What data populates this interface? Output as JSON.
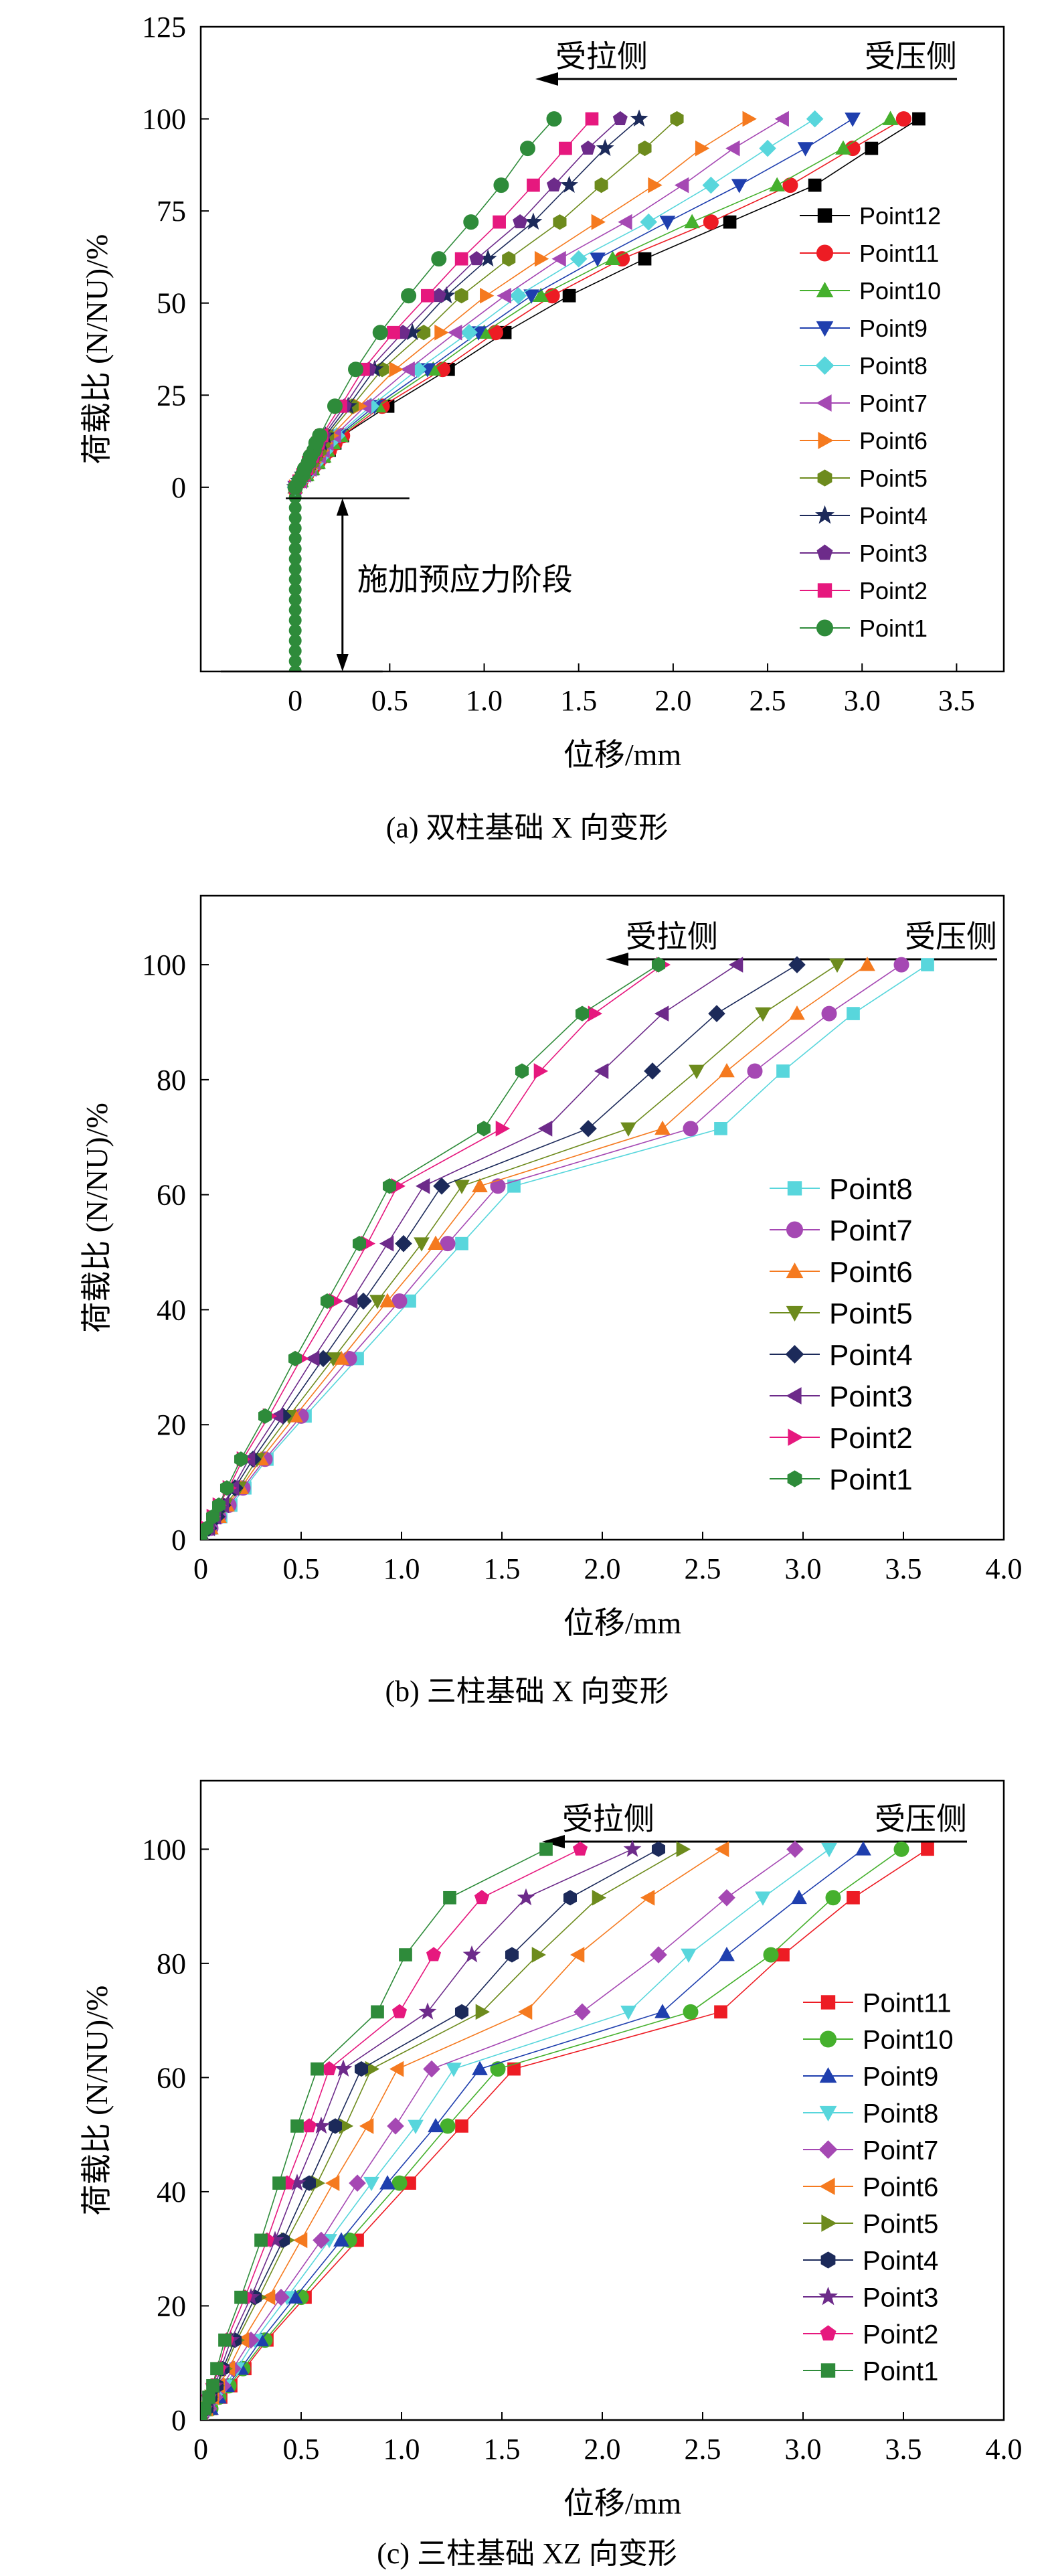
{
  "colors": {
    "Point12": "#000000",
    "Point11": "#ed1c24",
    "Point10": "#45b02d",
    "Point9": "#1f3fae",
    "Point8": "#58d6dc",
    "Point7": "#a548b3",
    "Point6": "#f57a1f",
    "Point5": "#6d8b1d",
    "Point4": "#1c2a5a",
    "Point3": "#6d2b8a",
    "Point2": "#e6187e",
    "Point1": "#2e8b3a"
  },
  "chart_data": [
    {
      "type": "line",
      "caption": "(a) 双柱基础 X 向变形",
      "xlabel": "位移/mm",
      "ylabel": "荷载比 (N/NU)/%",
      "xlim": [
        -0.5,
        3.75
      ],
      "ylim": [
        -50,
        125
      ],
      "xticks": [
        "0",
        "0.5",
        "1.0",
        "1.5",
        "2.0",
        "2.5",
        "3.0",
        "3.5"
      ],
      "yticks": [
        "0",
        "25",
        "50",
        "75",
        "100",
        "125"
      ],
      "arrow": {
        "left": "受拉侧",
        "right": "受压侧"
      },
      "annotation": "施加预应力阶段",
      "prestress": {
        "x": 0,
        "y_start": -50,
        "y_end": -3
      },
      "markers": {
        "Point12": "square",
        "Point11": "circle",
        "Point10": "triangle-up",
        "Point9": "triangle-down",
        "Point8": "diamond",
        "Point7": "triangle-left",
        "Point6": "triangle-right",
        "Point5": "hexagon",
        "Point4": "star",
        "Point3": "pentagon",
        "Point2": "square",
        "Point1": "circle"
      },
      "y_levels": [
        0,
        1.7,
        3.4,
        5,
        6.7,
        8.4,
        10,
        12,
        14,
        22,
        32,
        42,
        52,
        62,
        72,
        82,
        92,
        100
      ],
      "series": [
        {
          "name": "Point12",
          "x": [
            0,
            0.03,
            0.06,
            0.09,
            0.12,
            0.15,
            0.18,
            0.21,
            0.25,
            0.49,
            0.81,
            1.11,
            1.45,
            1.85,
            2.3,
            2.75,
            3.05,
            3.3
          ]
        },
        {
          "name": "Point11",
          "x": [
            0,
            0.03,
            0.06,
            0.09,
            0.12,
            0.15,
            0.18,
            0.21,
            0.25,
            0.46,
            0.78,
            1.06,
            1.36,
            1.73,
            2.2,
            2.62,
            2.95,
            3.22
          ]
        },
        {
          "name": "Point10",
          "x": [
            0,
            0.03,
            0.06,
            0.09,
            0.12,
            0.15,
            0.17,
            0.2,
            0.24,
            0.44,
            0.73,
            1.0,
            1.3,
            1.68,
            2.1,
            2.55,
            2.9,
            3.15
          ]
        },
        {
          "name": "Point9",
          "x": [
            0,
            0.03,
            0.06,
            0.09,
            0.11,
            0.14,
            0.17,
            0.19,
            0.23,
            0.42,
            0.7,
            0.97,
            1.25,
            1.6,
            1.97,
            2.35,
            2.7,
            2.95
          ]
        },
        {
          "name": "Point8",
          "x": [
            0,
            0.03,
            0.06,
            0.08,
            0.11,
            0.14,
            0.16,
            0.18,
            0.22,
            0.4,
            0.65,
            0.92,
            1.18,
            1.5,
            1.87,
            2.2,
            2.5,
            2.75
          ]
        },
        {
          "name": "Point7",
          "x": [
            0,
            0.03,
            0.05,
            0.08,
            0.1,
            0.13,
            0.15,
            0.17,
            0.21,
            0.37,
            0.6,
            0.85,
            1.11,
            1.4,
            1.75,
            2.05,
            2.32,
            2.58
          ]
        },
        {
          "name": "Point6",
          "x": [
            0,
            0.03,
            0.05,
            0.08,
            0.1,
            0.12,
            0.14,
            0.16,
            0.19,
            0.34,
            0.53,
            0.77,
            1.01,
            1.3,
            1.6,
            1.9,
            2.15,
            2.4
          ]
        },
        {
          "name": "Point5",
          "x": [
            0,
            0.02,
            0.05,
            0.07,
            0.09,
            0.11,
            0.13,
            0.15,
            0.17,
            0.3,
            0.46,
            0.68,
            0.88,
            1.13,
            1.4,
            1.62,
            1.85,
            2.02
          ]
        },
        {
          "name": "Point4",
          "x": [
            0,
            0.02,
            0.04,
            0.06,
            0.08,
            0.1,
            0.12,
            0.14,
            0.16,
            0.28,
            0.42,
            0.62,
            0.8,
            1.02,
            1.26,
            1.45,
            1.64,
            1.82
          ]
        },
        {
          "name": "Point3",
          "x": [
            0,
            0.02,
            0.04,
            0.06,
            0.08,
            0.1,
            0.11,
            0.13,
            0.15,
            0.26,
            0.39,
            0.57,
            0.76,
            0.96,
            1.19,
            1.37,
            1.55,
            1.72
          ]
        },
        {
          "name": "Point2",
          "x": [
            0,
            0.02,
            0.04,
            0.06,
            0.07,
            0.09,
            0.11,
            0.12,
            0.14,
            0.24,
            0.36,
            0.52,
            0.7,
            0.88,
            1.08,
            1.26,
            1.43,
            1.57
          ]
        },
        {
          "name": "Point1",
          "x": [
            0,
            0.02,
            0.04,
            0.05,
            0.07,
            0.08,
            0.1,
            0.11,
            0.13,
            0.21,
            0.32,
            0.45,
            0.6,
            0.76,
            0.93,
            1.09,
            1.23,
            1.37
          ]
        }
      ]
    },
    {
      "type": "line",
      "caption": "(b) 三柱基础 X 向变形",
      "xlabel": "位移/mm",
      "ylabel": "荷载比 (N/NU)/%",
      "xlim": [
        0,
        4.0
      ],
      "ylim": [
        0,
        112
      ],
      "xticks": [
        "0",
        "0.5",
        "1.0",
        "1.5",
        "2.0",
        "2.5",
        "3.0",
        "3.5",
        "4.0"
      ],
      "yticks": [
        "0",
        "20",
        "40",
        "60",
        "80",
        "100"
      ],
      "arrow": {
        "left": "受拉侧",
        "right": "受压侧"
      },
      "markers": {
        "Point8": "square",
        "Point7": "circle",
        "Point6": "triangle-up",
        "Point5": "triangle-down",
        "Point4": "diamond",
        "Point3": "triangle-left",
        "Point2": "triangle-right",
        "Point1": "hexagon"
      },
      "y_levels": [
        0,
        2,
        4,
        6,
        9,
        14,
        21.5,
        31.5,
        41.5,
        51.5,
        61.5,
        71.5,
        81.5,
        91.5,
        100
      ],
      "series": [
        {
          "name": "Point8",
          "x": [
            0,
            0.05,
            0.1,
            0.15,
            0.22,
            0.33,
            0.52,
            0.78,
            1.04,
            1.3,
            1.56,
            2.59,
            2.9,
            3.25,
            3.62
          ]
        },
        {
          "name": "Point7",
          "x": [
            0,
            0.05,
            0.09,
            0.14,
            0.21,
            0.32,
            0.5,
            0.74,
            0.99,
            1.23,
            1.48,
            2.44,
            2.76,
            3.13,
            3.49
          ]
        },
        {
          "name": "Point6",
          "x": [
            0,
            0.05,
            0.09,
            0.13,
            0.2,
            0.3,
            0.47,
            0.7,
            0.93,
            1.17,
            1.39,
            2.3,
            2.62,
            2.97,
            3.32
          ]
        },
        {
          "name": "Point5",
          "x": [
            0,
            0.04,
            0.08,
            0.12,
            0.19,
            0.28,
            0.44,
            0.66,
            0.88,
            1.1,
            1.3,
            2.13,
            2.47,
            2.8,
            3.17
          ]
        },
        {
          "name": "Point4",
          "x": [
            0,
            0.04,
            0.08,
            0.11,
            0.17,
            0.26,
            0.41,
            0.61,
            0.81,
            1.01,
            1.2,
            1.93,
            2.25,
            2.57,
            2.97
          ]
        },
        {
          "name": "Point3",
          "x": [
            0,
            0.04,
            0.07,
            0.11,
            0.16,
            0.24,
            0.38,
            0.56,
            0.75,
            0.93,
            1.11,
            1.72,
            2.0,
            2.3,
            2.67
          ]
        },
        {
          "name": "Point2",
          "x": [
            0,
            0.03,
            0.06,
            0.09,
            0.14,
            0.21,
            0.34,
            0.5,
            0.67,
            0.83,
            0.98,
            1.5,
            1.69,
            1.96,
            2.3
          ]
        },
        {
          "name": "Point1",
          "x": [
            0,
            0.03,
            0.06,
            0.09,
            0.13,
            0.2,
            0.32,
            0.47,
            0.63,
            0.79,
            0.94,
            1.41,
            1.6,
            1.9,
            2.28
          ]
        }
      ]
    },
    {
      "type": "line",
      "caption": "(c) 三柱基础 XZ 向变形",
      "xlabel": "位移/mm",
      "ylabel": "荷载比 (N/NU)/%",
      "xlim": [
        0,
        4.0
      ],
      "ylim": [
        0,
        112
      ],
      "xticks": [
        "0",
        "0.5",
        "1.0",
        "1.5",
        "2.0",
        "2.5",
        "3.0",
        "3.5",
        "4.0"
      ],
      "yticks": [
        "0",
        "20",
        "40",
        "60",
        "80",
        "100"
      ],
      "arrow": {
        "left": "受拉侧",
        "right": "受压侧"
      },
      "markers": {
        "Point11": "square",
        "Point10": "circle",
        "Point9": "triangle-up",
        "Point8": "triangle-down",
        "Point7": "diamond",
        "Point6": "triangle-left",
        "Point5": "triangle-right",
        "Point4": "hexagon",
        "Point3": "star",
        "Point2": "pentagon",
        "Point1": "square"
      },
      "y_levels": [
        0,
        2,
        4,
        6,
        9,
        14,
        21.5,
        31.5,
        41.5,
        51.5,
        61.5,
        71.5,
        81.5,
        91.5,
        100
      ],
      "series": [
        {
          "name": "Point11",
          "x": [
            0,
            0.05,
            0.1,
            0.15,
            0.22,
            0.33,
            0.52,
            0.78,
            1.04,
            1.3,
            1.56,
            2.59,
            2.9,
            3.25,
            3.62
          ]
        },
        {
          "name": "Point10",
          "x": [
            0,
            0.05,
            0.09,
            0.14,
            0.21,
            0.32,
            0.5,
            0.74,
            0.99,
            1.23,
            1.48,
            2.44,
            2.84,
            3.15,
            3.49
          ]
        },
        {
          "name": "Point9",
          "x": [
            0,
            0.05,
            0.09,
            0.13,
            0.2,
            0.3,
            0.47,
            0.7,
            0.93,
            1.17,
            1.39,
            2.3,
            2.62,
            2.98,
            3.3
          ]
        },
        {
          "name": "Point8",
          "x": [
            0,
            0.04,
            0.08,
            0.12,
            0.18,
            0.27,
            0.43,
            0.64,
            0.85,
            1.07,
            1.26,
            2.13,
            2.43,
            2.8,
            3.13
          ]
        },
        {
          "name": "Point7",
          "x": [
            0,
            0.04,
            0.07,
            0.11,
            0.16,
            0.25,
            0.4,
            0.6,
            0.78,
            0.97,
            1.15,
            1.9,
            2.28,
            2.62,
            2.96
          ]
        },
        {
          "name": "Point6",
          "x": [
            0,
            0.03,
            0.06,
            0.09,
            0.14,
            0.21,
            0.34,
            0.5,
            0.66,
            0.83,
            0.98,
            1.62,
            1.88,
            2.23,
            2.6
          ]
        },
        {
          "name": "Point5",
          "x": [
            0,
            0.03,
            0.05,
            0.08,
            0.12,
            0.18,
            0.29,
            0.43,
            0.58,
            0.72,
            0.85,
            1.4,
            1.68,
            1.98,
            2.4
          ]
        },
        {
          "name": "Point4",
          "x": [
            0,
            0.03,
            0.05,
            0.08,
            0.11,
            0.17,
            0.27,
            0.41,
            0.54,
            0.67,
            0.8,
            1.3,
            1.55,
            1.84,
            2.28
          ]
        },
        {
          "name": "Point3",
          "x": [
            0,
            0.02,
            0.04,
            0.07,
            0.1,
            0.15,
            0.25,
            0.37,
            0.48,
            0.6,
            0.71,
            1.13,
            1.35,
            1.62,
            2.15
          ]
        },
        {
          "name": "Point2",
          "x": [
            0,
            0.02,
            0.04,
            0.06,
            0.09,
            0.13,
            0.22,
            0.33,
            0.43,
            0.54,
            0.64,
            0.99,
            1.16,
            1.4,
            1.89
          ]
        },
        {
          "name": "Point1",
          "x": [
            0,
            0.02,
            0.04,
            0.06,
            0.08,
            0.12,
            0.2,
            0.3,
            0.39,
            0.48,
            0.58,
            0.88,
            1.02,
            1.24,
            1.72
          ]
        }
      ]
    }
  ]
}
